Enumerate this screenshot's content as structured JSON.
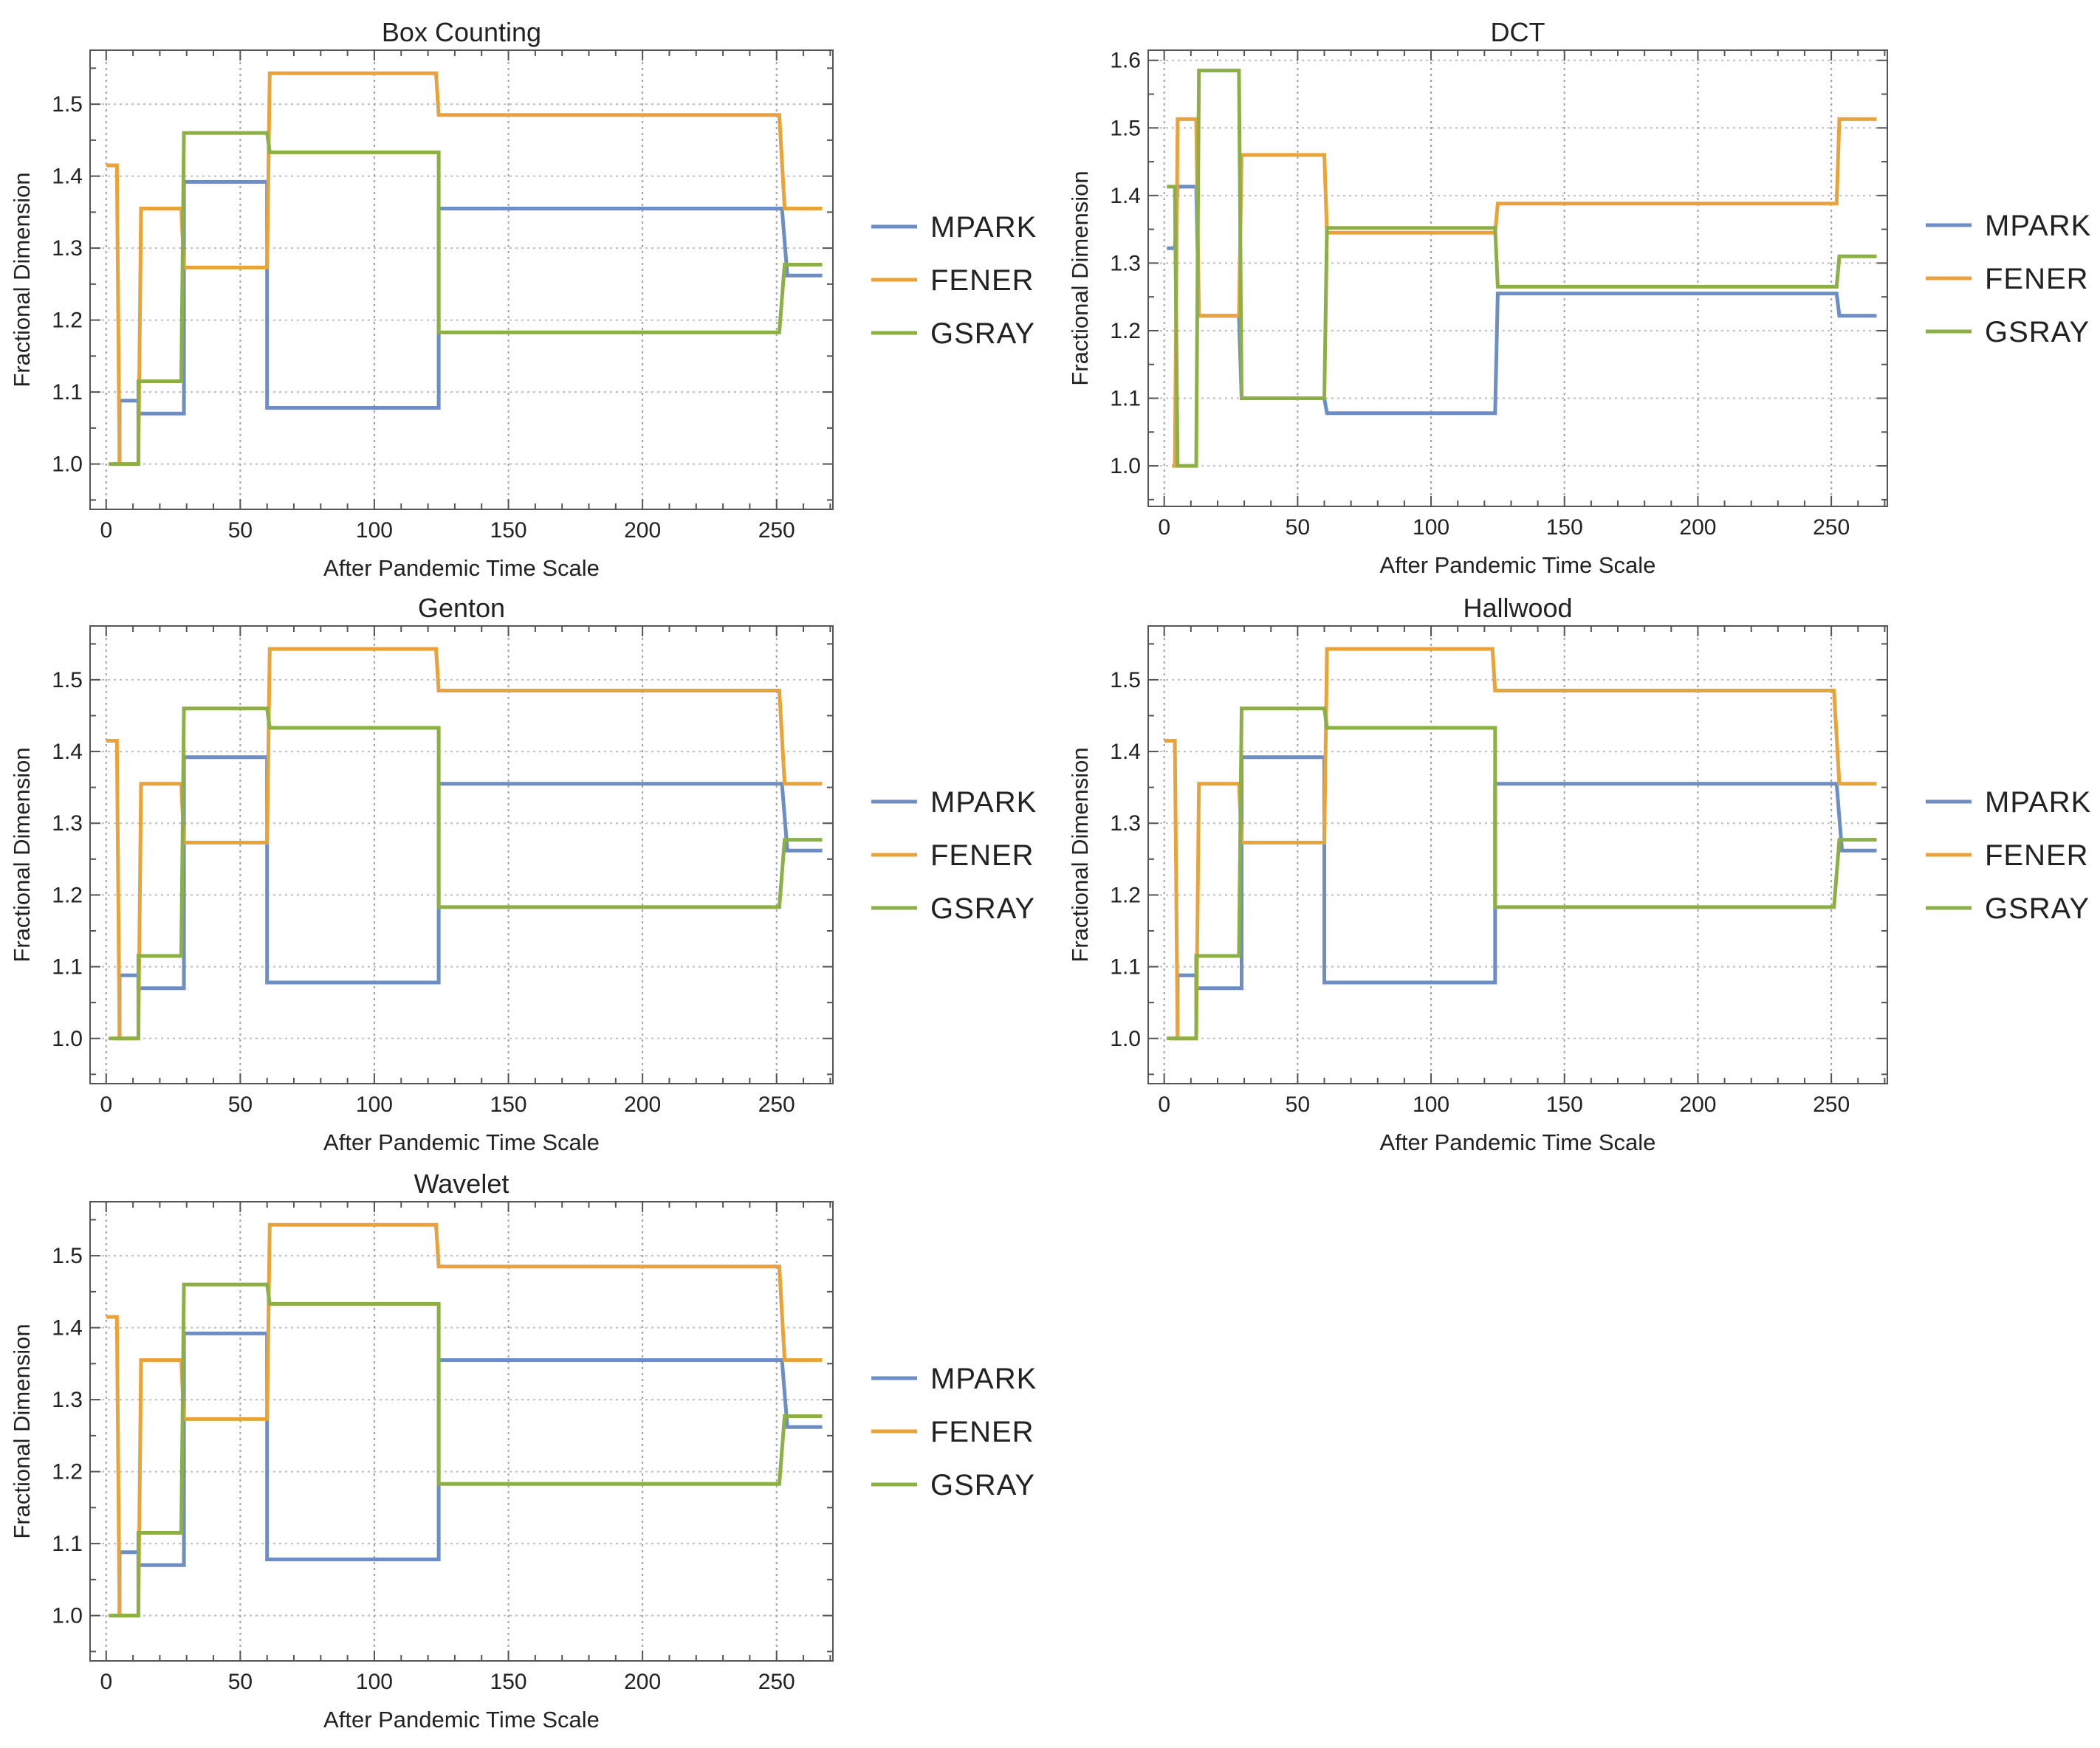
{
  "chart_data": [
    {
      "type": "line",
      "title": "Box Counting",
      "xlabel": "After Pandemic Time Scale",
      "ylabel": "Fractional Dimension",
      "xlim": [
        -6,
        271
      ],
      "ylim": [
        0.937,
        1.575
      ],
      "xticks": [
        "0",
        "50",
        "100",
        "150",
        "200",
        "250"
      ],
      "yticks": [
        "1.0",
        "1.1",
        "1.2",
        "1.3",
        "1.4",
        "1.5"
      ],
      "legend": [
        "MPARK",
        "FENER",
        "GSRAY"
      ],
      "series": [
        {
          "name": "MPARK",
          "color": "#6c8ec4",
          "x": [
            3,
            5,
            5,
            12,
            12,
            29,
            29,
            60,
            60,
            124,
            124,
            252,
            254,
            267
          ],
          "y": [
            1.0,
            1.0,
            1.088,
            1.088,
            1.07,
            1.07,
            1.392,
            1.392,
            1.078,
            1.078,
            1.355,
            1.355,
            1.262,
            1.262
          ]
        },
        {
          "name": "FENER",
          "color": "#e8a33a",
          "x": [
            0,
            4,
            5,
            12,
            13,
            28,
            29,
            60,
            61,
            123,
            124,
            251,
            253,
            267
          ],
          "y": [
            1.415,
            1.415,
            1.0,
            1.0,
            1.355,
            1.355,
            1.273,
            1.273,
            1.543,
            1.543,
            1.485,
            1.485,
            1.355,
            1.355
          ]
        },
        {
          "name": "GSRAY",
          "color": "#8cb046",
          "x": [
            1,
            12,
            12,
            28,
            29,
            60,
            61,
            124,
            124,
            251,
            253,
            267
          ],
          "y": [
            1.0,
            1.0,
            1.115,
            1.115,
            1.46,
            1.46,
            1.433,
            1.433,
            1.183,
            1.183,
            1.277,
            1.277
          ]
        }
      ]
    },
    {
      "type": "line",
      "title": "DCT",
      "xlabel": "After Pandemic Time Scale",
      "ylabel": "Fractional Dimension",
      "xlim": [
        -6,
        271
      ],
      "ylim": [
        0.94,
        1.615
      ],
      "xticks": [
        "0",
        "50",
        "100",
        "150",
        "200",
        "250"
      ],
      "yticks": [
        "1.0",
        "1.1",
        "1.2",
        "1.3",
        "1.4",
        "1.5",
        "1.6"
      ],
      "legend": [
        "MPARK",
        "FENER",
        "GSRAY"
      ],
      "series": [
        {
          "name": "MPARK",
          "color": "#6c8ec4",
          "x": [
            1,
            4,
            5,
            12,
            13,
            28,
            29,
            60,
            61,
            124,
            125,
            252,
            253,
            267
          ],
          "y": [
            1.322,
            1.322,
            1.413,
            1.413,
            1.222,
            1.222,
            1.1,
            1.1,
            1.078,
            1.078,
            1.255,
            1.255,
            1.222,
            1.222
          ]
        },
        {
          "name": "FENER",
          "color": "#e8a33a",
          "x": [
            3,
            4,
            5,
            12,
            13,
            28,
            29,
            60,
            61,
            124,
            125,
            252,
            253,
            267
          ],
          "y": [
            1.0,
            1.0,
            1.513,
            1.513,
            1.222,
            1.222,
            1.46,
            1.46,
            1.345,
            1.345,
            1.388,
            1.388,
            1.513,
            1.513
          ]
        },
        {
          "name": "GSRAY",
          "color": "#8cb046",
          "x": [
            1,
            4,
            5,
            12,
            13,
            28,
            29,
            60,
            61,
            124,
            125,
            252,
            253,
            267
          ],
          "y": [
            1.413,
            1.413,
            1.0,
            1.0,
            1.585,
            1.585,
            1.1,
            1.1,
            1.352,
            1.352,
            1.265,
            1.265,
            1.31,
            1.31
          ]
        }
      ]
    },
    {
      "type": "line",
      "title": "Genton",
      "xlabel": "After Pandemic Time Scale",
      "ylabel": "Fractional Dimension",
      "xlim": [
        -6,
        271
      ],
      "ylim": [
        0.937,
        1.575
      ],
      "xticks": [
        "0",
        "50",
        "100",
        "150",
        "200",
        "250"
      ],
      "yticks": [
        "1.0",
        "1.1",
        "1.2",
        "1.3",
        "1.4",
        "1.5"
      ],
      "legend": [
        "MPARK",
        "FENER",
        "GSRAY"
      ],
      "series": [
        {
          "name": "MPARK",
          "color": "#6c8ec4",
          "x": [
            3,
            5,
            5,
            12,
            12,
            29,
            29,
            60,
            60,
            124,
            124,
            252,
            254,
            267
          ],
          "y": [
            1.0,
            1.0,
            1.088,
            1.088,
            1.07,
            1.07,
            1.392,
            1.392,
            1.078,
            1.078,
            1.355,
            1.355,
            1.262,
            1.262
          ]
        },
        {
          "name": "FENER",
          "color": "#e8a33a",
          "x": [
            0,
            4,
            5,
            12,
            13,
            28,
            29,
            60,
            61,
            123,
            124,
            251,
            253,
            267
          ],
          "y": [
            1.415,
            1.415,
            1.0,
            1.0,
            1.355,
            1.355,
            1.273,
            1.273,
            1.543,
            1.543,
            1.485,
            1.485,
            1.355,
            1.355
          ]
        },
        {
          "name": "GSRAY",
          "color": "#8cb046",
          "x": [
            1,
            12,
            12,
            28,
            29,
            60,
            61,
            124,
            124,
            251,
            253,
            267
          ],
          "y": [
            1.0,
            1.0,
            1.115,
            1.115,
            1.46,
            1.46,
            1.433,
            1.433,
            1.183,
            1.183,
            1.277,
            1.277
          ]
        }
      ]
    },
    {
      "type": "line",
      "title": "Hallwood",
      "xlabel": "After Pandemic Time Scale",
      "ylabel": "Fractional Dimension",
      "xlim": [
        -6,
        271
      ],
      "ylim": [
        0.937,
        1.575
      ],
      "xticks": [
        "0",
        "50",
        "100",
        "150",
        "200",
        "250"
      ],
      "yticks": [
        "1.0",
        "1.1",
        "1.2",
        "1.3",
        "1.4",
        "1.5"
      ],
      "legend": [
        "MPARK",
        "FENER",
        "GSRAY"
      ],
      "series": [
        {
          "name": "MPARK",
          "color": "#6c8ec4",
          "x": [
            3,
            5,
            5,
            12,
            12,
            29,
            29,
            60,
            60,
            124,
            124,
            252,
            254,
            267
          ],
          "y": [
            1.0,
            1.0,
            1.088,
            1.088,
            1.07,
            1.07,
            1.392,
            1.392,
            1.078,
            1.078,
            1.355,
            1.355,
            1.262,
            1.262
          ]
        },
        {
          "name": "FENER",
          "color": "#e8a33a",
          "x": [
            0,
            4,
            5,
            12,
            13,
            28,
            29,
            60,
            61,
            123,
            124,
            251,
            253,
            267
          ],
          "y": [
            1.415,
            1.415,
            1.0,
            1.0,
            1.355,
            1.355,
            1.273,
            1.273,
            1.543,
            1.543,
            1.485,
            1.485,
            1.355,
            1.355
          ]
        },
        {
          "name": "GSRAY",
          "color": "#8cb046",
          "x": [
            1,
            12,
            12,
            28,
            29,
            60,
            61,
            124,
            124,
            251,
            253,
            267
          ],
          "y": [
            1.0,
            1.0,
            1.115,
            1.115,
            1.46,
            1.46,
            1.433,
            1.433,
            1.183,
            1.183,
            1.277,
            1.277
          ]
        }
      ]
    },
    {
      "type": "line",
      "title": "Wavelet",
      "xlabel": "After Pandemic Time Scale",
      "ylabel": "Fractional Dimension",
      "xlim": [
        -6,
        271
      ],
      "ylim": [
        0.937,
        1.575
      ],
      "xticks": [
        "0",
        "50",
        "100",
        "150",
        "200",
        "250"
      ],
      "yticks": [
        "1.0",
        "1.1",
        "1.2",
        "1.3",
        "1.4",
        "1.5"
      ],
      "legend": [
        "MPARK",
        "FENER",
        "GSRAY"
      ],
      "series": [
        {
          "name": "MPARK",
          "color": "#6c8ec4",
          "x": [
            3,
            5,
            5,
            12,
            12,
            29,
            29,
            60,
            60,
            124,
            124,
            252,
            254,
            267
          ],
          "y": [
            1.0,
            1.0,
            1.088,
            1.088,
            1.07,
            1.07,
            1.392,
            1.392,
            1.078,
            1.078,
            1.355,
            1.355,
            1.262,
            1.262
          ]
        },
        {
          "name": "FENER",
          "color": "#e8a33a",
          "x": [
            0,
            4,
            5,
            12,
            13,
            28,
            29,
            60,
            61,
            123,
            124,
            251,
            253,
            267
          ],
          "y": [
            1.415,
            1.415,
            1.0,
            1.0,
            1.355,
            1.355,
            1.273,
            1.273,
            1.543,
            1.543,
            1.485,
            1.485,
            1.355,
            1.355
          ]
        },
        {
          "name": "GSRAY",
          "color": "#8cb046",
          "x": [
            1,
            12,
            12,
            28,
            29,
            60,
            61,
            124,
            124,
            251,
            253,
            267
          ],
          "y": [
            1.0,
            1.0,
            1.115,
            1.115,
            1.46,
            1.46,
            1.433,
            1.433,
            1.183,
            1.183,
            1.277,
            1.277
          ]
        }
      ]
    }
  ]
}
